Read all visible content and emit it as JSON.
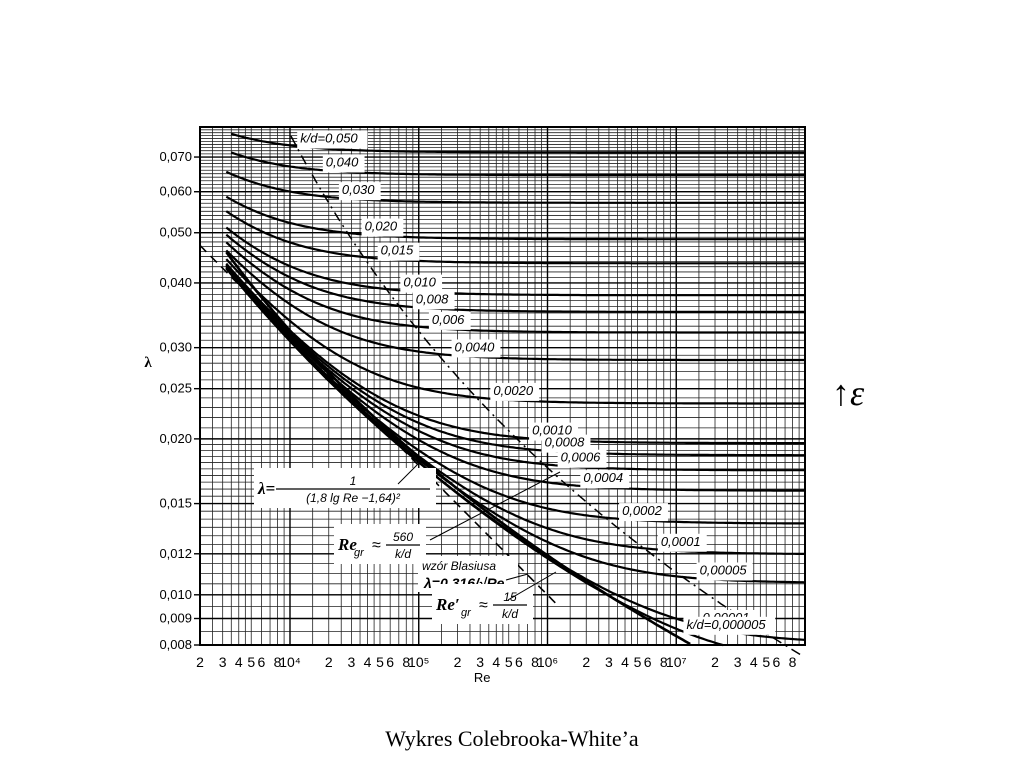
{
  "caption": "Wykres Colebrooka-White’a",
  "side_note": "↑ε",
  "chart_data": {
    "type": "line",
    "title": "",
    "xlabel": "Re",
    "ylabel": "λ",
    "xscale": "log",
    "yscale": "log",
    "xlim": [
      2000,
      100000000
    ],
    "ylim": [
      0.008,
      0.08
    ],
    "grid": true,
    "x_ticks": [
      {
        "value": 2000,
        "label": "2"
      },
      {
        "value": 3000,
        "label": "3"
      },
      {
        "value": 4000,
        "label": "4"
      },
      {
        "value": 5000,
        "label": "5"
      },
      {
        "value": 6000,
        "label": "6"
      },
      {
        "value": 8000,
        "label": "8"
      },
      {
        "value": 10000,
        "label": "10⁴"
      },
      {
        "value": 20000,
        "label": "2"
      },
      {
        "value": 30000,
        "label": "3"
      },
      {
        "value": 40000,
        "label": "4"
      },
      {
        "value": 50000,
        "label": "5"
      },
      {
        "value": 60000,
        "label": "6"
      },
      {
        "value": 80000,
        "label": "8"
      },
      {
        "value": 100000,
        "label": "10⁵"
      },
      {
        "value": 200000,
        "label": "2"
      },
      {
        "value": 300000,
        "label": "3"
      },
      {
        "value": 400000,
        "label": "4"
      },
      {
        "value": 500000,
        "label": "5"
      },
      {
        "value": 600000,
        "label": "6"
      },
      {
        "value": 800000,
        "label": "8"
      },
      {
        "value": 1000000,
        "label": "10⁶"
      },
      {
        "value": 2000000,
        "label": "2"
      },
      {
        "value": 3000000,
        "label": "3"
      },
      {
        "value": 4000000,
        "label": "4"
      },
      {
        "value": 5000000,
        "label": "5"
      },
      {
        "value": 6000000,
        "label": "6"
      },
      {
        "value": 8000000,
        "label": "8"
      },
      {
        "value": 10000000,
        "label": "10⁷"
      },
      {
        "value": 20000000,
        "label": "2"
      },
      {
        "value": 30000000,
        "label": "3"
      },
      {
        "value": 40000000,
        "label": "4"
      },
      {
        "value": 50000000,
        "label": "5"
      },
      {
        "value": 60000000,
        "label": "6"
      },
      {
        "value": 80000000,
        "label": "8"
      }
    ],
    "y_ticks": [
      {
        "value": 0.07,
        "label": "0,070"
      },
      {
        "value": 0.06,
        "label": "0,060"
      },
      {
        "value": 0.05,
        "label": "0,050"
      },
      {
        "value": 0.04,
        "label": "0,040"
      },
      {
        "value": 0.03,
        "label": "0,030"
      },
      {
        "value": 0.025,
        "label": "0,025"
      },
      {
        "value": 0.02,
        "label": "0,020"
      },
      {
        "value": 0.015,
        "label": "0,015"
      },
      {
        "value": 0.012,
        "label": "0,012"
      },
      {
        "value": 0.01,
        "label": "0,010"
      },
      {
        "value": 0.009,
        "label": "0,009"
      },
      {
        "value": 0.008,
        "label": "0,008"
      }
    ],
    "curve_labels": [
      "k/d=0,050",
      "0,040",
      "0,030",
      "0,020",
      "0,015",
      "0,010",
      "0,008",
      "0,006",
      "0,0040",
      "0,0020",
      "0,0010",
      "0,0008",
      "0,0006",
      "0,0004",
      "0,0002",
      "0,0001",
      "0,00005",
      "0,00001",
      "k/d=0,000005"
    ],
    "roughness_values": [
      0.05,
      0.04,
      0.03,
      0.02,
      0.015,
      0.01,
      0.008,
      0.006,
      0.004,
      0.002,
      0.001,
      0.0008,
      0.0006,
      0.0004,
      0.0002,
      0.0001,
      5e-05,
      1e-05,
      5e-06
    ],
    "annotations": {
      "smooth_formula": {
        "lhs": "λ=",
        "numerator": "1",
        "denominator": "(1,8 lg Re −1,64)²"
      },
      "limit_formula": {
        "lhs": "Re",
        "sub": "gr",
        "approx": "≈",
        "numerator": "560",
        "denominator": "k/d"
      },
      "blasius_title": "wzór Blasiusa",
      "blasius_formula": "λ=0,316/√Re",
      "limit2_formula": {
        "lhs": "Re′",
        "sub": "gr",
        "approx": "≈",
        "numerator": "15",
        "denominator": "k/d"
      }
    }
  }
}
